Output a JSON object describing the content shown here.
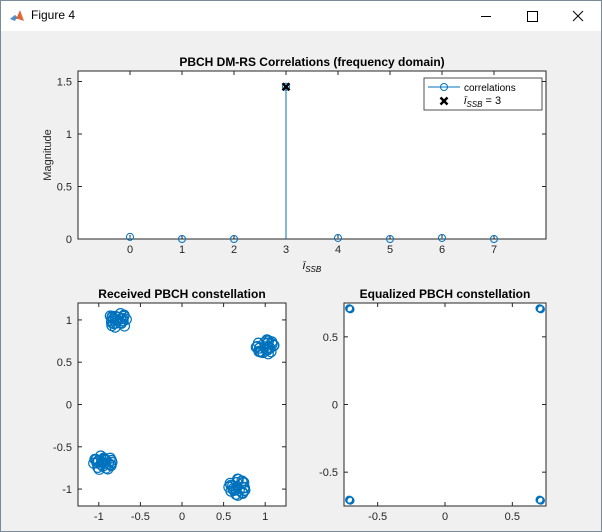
{
  "window": {
    "title": "Figure 4",
    "controls": [
      "minimize",
      "maximize",
      "close"
    ]
  },
  "colors": {
    "stem": "#0072BD",
    "marker_x": "#000000",
    "axes": "#262626",
    "background": "#f0f0f0"
  },
  "chart_data": [
    {
      "type": "stem",
      "title": "PBCH DM-RS Correlations (frequency domain)",
      "xlabel": "ī_SSB",
      "ylabel": "Magnitude",
      "x": [
        0,
        1,
        2,
        3,
        4,
        5,
        6,
        7
      ],
      "values": [
        0.02,
        0.0,
        0.0,
        1.45,
        0.01,
        0.0,
        0.01,
        0.0
      ],
      "xlim": [
        -1,
        8
      ],
      "ylim": [
        0,
        1.6
      ],
      "xticks": [
        "0",
        "1",
        "2",
        "3",
        "4",
        "5",
        "6",
        "7"
      ],
      "yticks": [
        "0",
        "0.5",
        "1",
        "1.5"
      ],
      "highlight": {
        "x": 3,
        "y": 1.45,
        "marker": "x"
      },
      "legend": {
        "placement": "top-right",
        "entries": [
          {
            "label": "correlations",
            "marker": "o",
            "line": true
          },
          {
            "label": "ī_SSB = 3",
            "marker": "x",
            "line": false
          }
        ]
      }
    },
    {
      "type": "scatter",
      "title": "Received PBCH constellation",
      "xlim": [
        -1.25,
        1.25
      ],
      "ylim": [
        -1.2,
        1.2
      ],
      "xticks": [
        "-1",
        "-0.5",
        "0",
        "0.5",
        "1"
      ],
      "yticks": [
        "-1",
        "-0.5",
        "0",
        "0.5",
        "1"
      ],
      "clusters": [
        {
          "center": [
            -0.78,
            0.99
          ],
          "spread": 0.1,
          "count": 25
        },
        {
          "center": [
            1.0,
            0.68
          ],
          "spread": 0.09,
          "count": 25
        },
        {
          "center": [
            -0.95,
            -0.7
          ],
          "spread": 0.1,
          "count": 25
        },
        {
          "center": [
            0.68,
            -0.98
          ],
          "spread": 0.1,
          "count": 25
        }
      ]
    },
    {
      "type": "scatter",
      "title": "Equalized PBCH constellation",
      "xlim": [
        -0.75,
        0.75
      ],
      "ylim": [
        -0.75,
        0.75
      ],
      "xticks": [
        "-0.5",
        "0",
        "0.5"
      ],
      "yticks": [
        "-0.5",
        "0",
        "0.5"
      ],
      "points": [
        [
          -0.707,
          0.707
        ],
        [
          0.707,
          0.707
        ],
        [
          -0.707,
          -0.707
        ],
        [
          0.707,
          -0.707
        ]
      ]
    }
  ]
}
